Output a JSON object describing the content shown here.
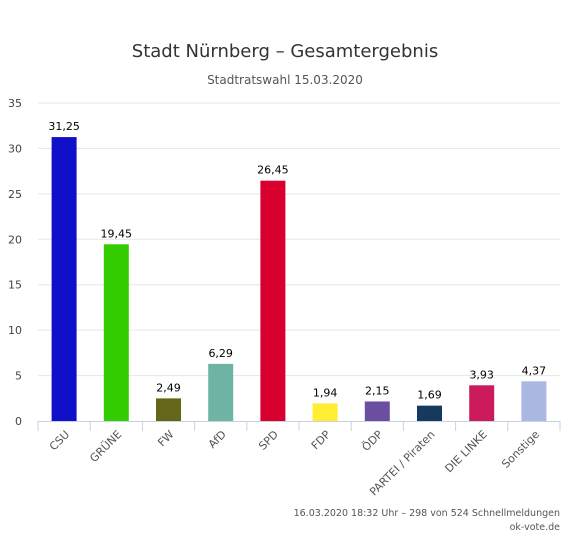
{
  "chart_data": {
    "type": "bar",
    "title": "Stadt Nürnberg – Gesamtergebnis",
    "subtitle": "Stadtratswahl 15.03.2020",
    "categories": [
      "CSU",
      "GRÜNE",
      "FW",
      "AfD",
      "SPD",
      "FDP",
      "ÖDP",
      "PARTEI / Piraten",
      "DIE LINKE",
      "Sonstige"
    ],
    "values": [
      31.25,
      19.45,
      2.49,
      6.29,
      26.45,
      1.94,
      2.15,
      1.69,
      3.93,
      4.37
    ],
    "value_labels": [
      "31,25",
      "19,45",
      "2,49",
      "6,29",
      "26,45",
      "1,94",
      "2,15",
      "1,69",
      "3,93",
      "4,37"
    ],
    "colors": [
      "#1010c8",
      "#32cc00",
      "#666619",
      "#6fb3a5",
      "#d8002e",
      "#ffee33",
      "#6a4fa0",
      "#153a5e",
      "#cc1b5c",
      "#aab8e3"
    ],
    "yticks": [
      0,
      5,
      10,
      15,
      20,
      25,
      30,
      35
    ],
    "ylim": [
      0,
      35
    ],
    "grid": true,
    "xlabel": "",
    "ylabel": ""
  },
  "footer": {
    "status": "16.03.2020 18:32 Uhr – 298 von 524 Schnellmeldungen",
    "source": "ok-vote.de"
  }
}
